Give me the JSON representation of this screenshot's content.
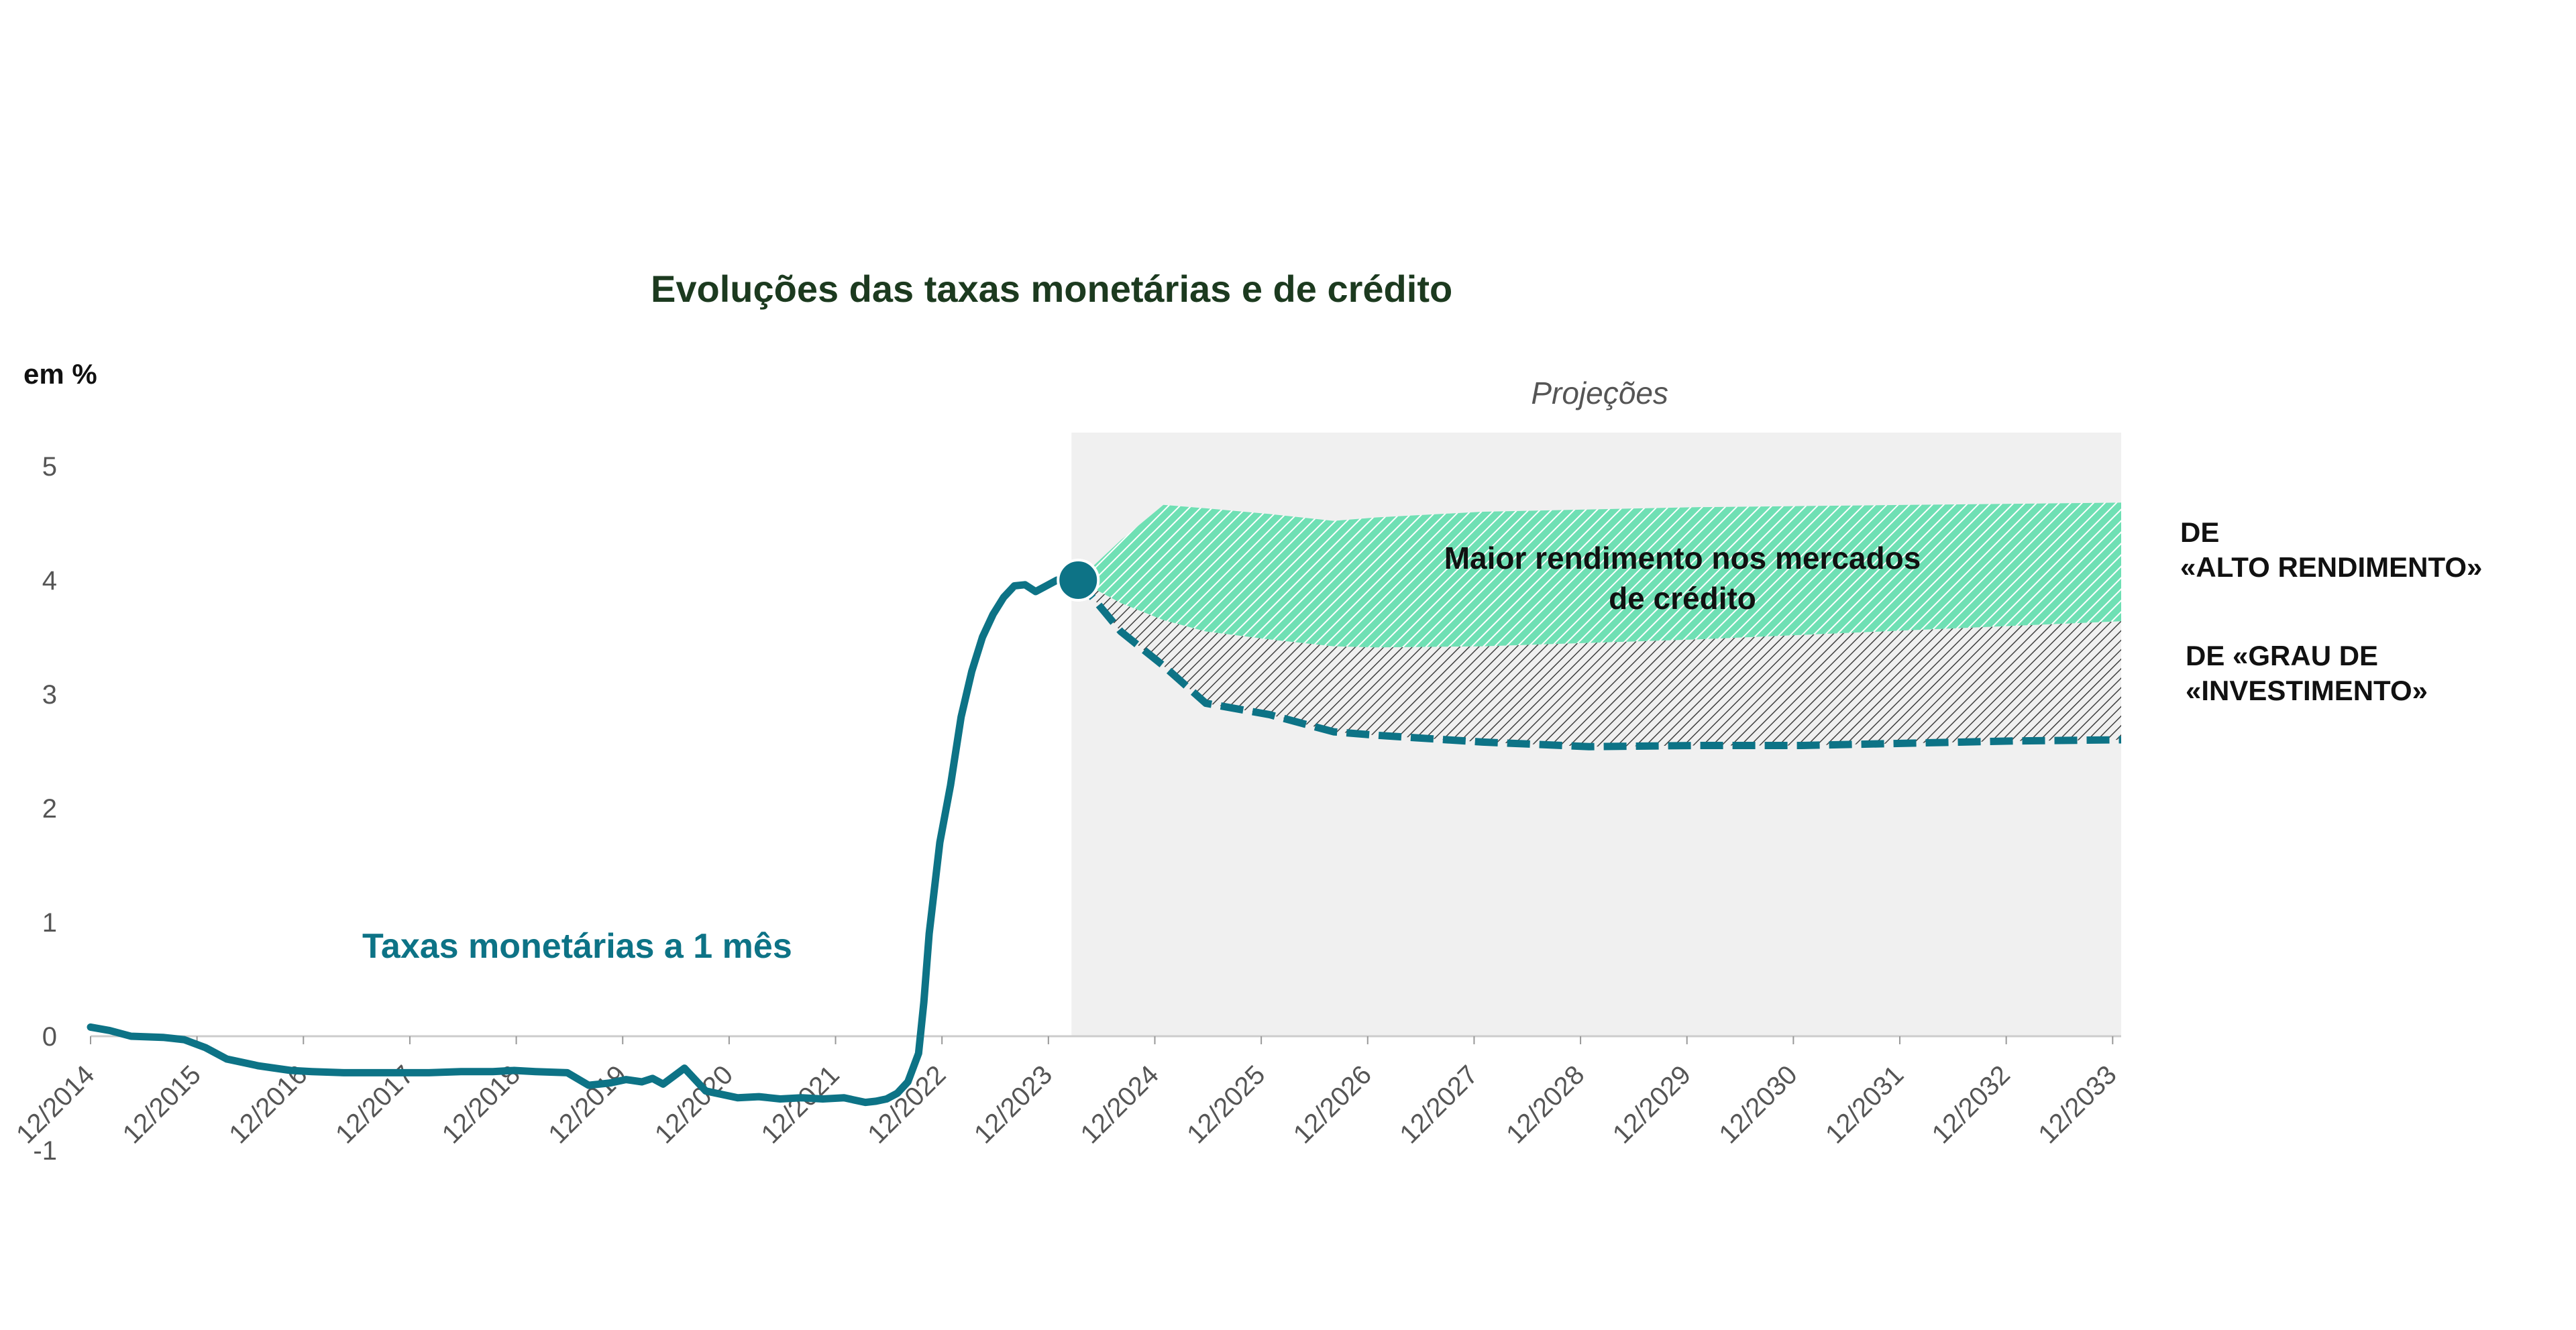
{
  "chart_data": {
    "type": "line",
    "title": "Evoluções das taxas monetárias e de crédito",
    "ylabel": "em %",
    "ylim": [
      -1,
      5
    ],
    "yticks": [
      "5",
      "4",
      "3",
      "2",
      "1",
      "0",
      "-1"
    ],
    "xlim": [
      2014.92,
      2034.0
    ],
    "x_tick_labels": [
      "12/2014",
      "12/2015",
      "12/2016",
      "12/2017",
      "12/2018",
      "12/2019",
      "12/2020",
      "12/2021",
      "12/2022",
      "12/2023",
      "12/2024",
      "12/2025",
      "12/2026",
      "12/2027",
      "12/2028",
      "12/2029",
      "12/2030",
      "12/2031",
      "12/2032",
      "12/2033"
    ],
    "projection_label": "Projeções",
    "projection_range": [
      2024.2,
      2034.0
    ],
    "annotation": [
      "Maior rendimento nos mercados",
      "de crédito"
    ],
    "series_label": "Taxas monetárias a 1 mês",
    "colors": {
      "series": "#0d7386",
      "high_yield": "#4fd4a0",
      "investment_grade": "#404040",
      "projection_bg": "#f0f0f0"
    },
    "series": [
      {
        "name": "Taxas monetárias a 1 mês",
        "style": "solid",
        "x": [
          2014.92,
          2015.1,
          2015.3,
          2015.6,
          2015.8,
          2016.0,
          2016.2,
          2016.5,
          2016.8,
          2017.0,
          2017.3,
          2017.6,
          2017.9,
          2018.1,
          2018.4,
          2018.7,
          2018.9,
          2019.1,
          2019.4,
          2019.6,
          2019.8,
          2019.95,
          2020.1,
          2020.2,
          2020.3,
          2020.5,
          2020.7,
          2020.9,
          2021.0,
          2021.2,
          2021.4,
          2021.6,
          2021.8,
          2022.0,
          2022.1,
          2022.2,
          2022.3,
          2022.4,
          2022.5,
          2022.6,
          2022.7,
          2022.75,
          2022.8,
          2022.9,
          2023.0,
          2023.1,
          2023.2,
          2023.3,
          2023.4,
          2023.5,
          2023.6,
          2023.7,
          2023.8,
          2023.9,
          2024.0,
          2024.1,
          2024.2
        ],
        "y": [
          0.08,
          0.05,
          0.0,
          -0.01,
          -0.03,
          -0.1,
          -0.2,
          -0.26,
          -0.3,
          -0.31,
          -0.32,
          -0.32,
          -0.32,
          -0.32,
          -0.31,
          -0.31,
          -0.3,
          -0.31,
          -0.32,
          -0.43,
          -0.41,
          -0.38,
          -0.4,
          -0.37,
          -0.42,
          -0.28,
          -0.48,
          -0.52,
          -0.54,
          -0.53,
          -0.55,
          -0.54,
          -0.55,
          -0.54,
          -0.56,
          -0.58,
          -0.57,
          -0.55,
          -0.5,
          -0.4,
          -0.15,
          0.3,
          0.9,
          1.7,
          2.2,
          2.8,
          3.2,
          3.5,
          3.7,
          3.85,
          3.95,
          3.96,
          3.9,
          3.95,
          4.0,
          4.0,
          4.0
        ]
      },
      {
        "name": "Projeção taxas monetárias",
        "style": "dashed",
        "x": [
          2024.2,
          2024.6,
          2025.0,
          2025.4,
          2026.0,
          2026.6,
          2027.0,
          2028.0,
          2029.0,
          2030.0,
          2031.0,
          2032.0,
          2033.0,
          2034.0
        ],
        "y": [
          4.0,
          3.55,
          3.25,
          2.92,
          2.82,
          2.67,
          2.64,
          2.58,
          2.54,
          2.55,
          2.55,
          2.57,
          2.59,
          2.6
        ]
      },
      {
        "name": "DE «GRAU DE «INVESTIMENTO»",
        "x": [
          2024.2,
          2024.6,
          2025.0,
          2025.4,
          2026.0,
          2026.6,
          2027.0,
          2028.0,
          2029.0,
          2030.0,
          2031.0,
          2032.0,
          2033.0,
          2034.0
        ],
        "y": [
          4.0,
          3.8,
          3.65,
          3.55,
          3.48,
          3.42,
          3.41,
          3.42,
          3.45,
          3.48,
          3.52,
          3.56,
          3.6,
          3.64
        ]
      },
      {
        "name": "DE «ALTO RENDIMENTO»",
        "x": [
          2024.2,
          2024.6,
          2025.0,
          2025.4,
          2026.0,
          2026.6,
          2027.0,
          2028.0,
          2029.0,
          2030.0,
          2031.0,
          2032.0,
          2033.0,
          2034.0
        ],
        "y": [
          4.0,
          4.35,
          4.66,
          4.63,
          4.58,
          4.52,
          4.55,
          4.6,
          4.62,
          4.64,
          4.65,
          4.66,
          4.67,
          4.68
        ]
      }
    ],
    "legend": {
      "high_yield": [
        "DE",
        "«ALTO RENDIMENTO»"
      ],
      "investment_grade": [
        "DE «GRAU DE",
        "«INVESTIMENTO»"
      ]
    }
  }
}
